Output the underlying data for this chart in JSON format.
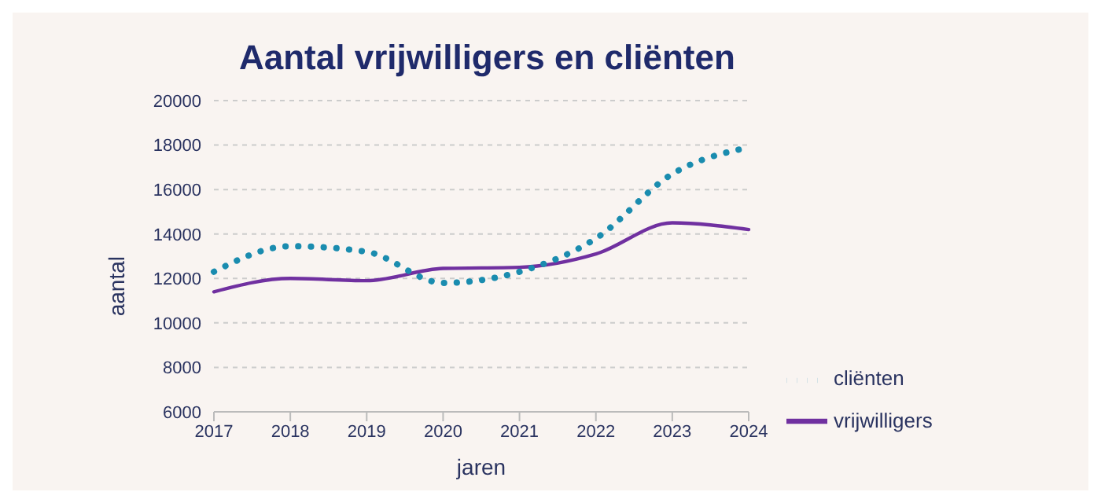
{
  "chart_data": {
    "type": "line",
    "title": "Aantal vrijwilligers en cliënten",
    "xlabel": "jaren",
    "ylabel": "aantal",
    "categories": [
      "2017",
      "2018",
      "2019",
      "2020",
      "2021",
      "2022",
      "2023",
      "2024"
    ],
    "series": [
      {
        "name": "vrijwilligers",
        "color": "#7030a0",
        "line_style": "solid",
        "values": [
          11400,
          12000,
          11900,
          12450,
          12500,
          13100,
          14500,
          14200
        ]
      },
      {
        "name": "cliënten",
        "color": "#1a8caf",
        "line_style": "dotted",
        "values": [
          12300,
          13450,
          13200,
          11800,
          12300,
          13800,
          16700,
          17900
        ]
      }
    ],
    "ylim": [
      6000,
      20000
    ],
    "yticks": [
      6000,
      8000,
      10000,
      12000,
      14000,
      16000,
      18000,
      20000
    ],
    "grid": "y",
    "legend": "bottom right",
    "marker": "none"
  }
}
